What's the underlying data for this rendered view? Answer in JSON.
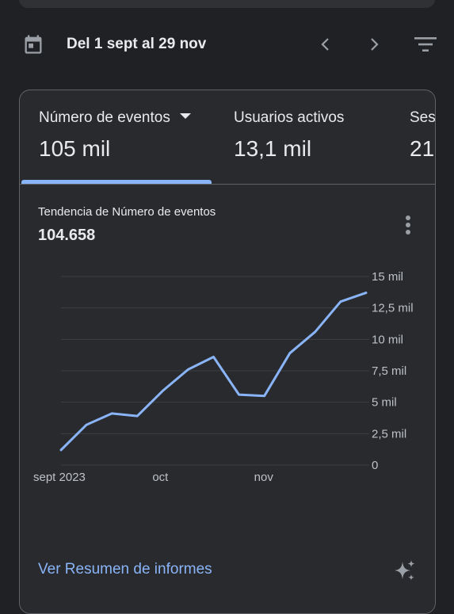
{
  "header": {
    "date_range": "Del 1 sept al 29 nov",
    "icons": {
      "calendar": "calendar-icon",
      "prev": "chevron-left-icon",
      "next": "chevron-right-icon",
      "filter": "filter-icon"
    }
  },
  "card": {
    "tabs": [
      {
        "label": "Número de eventos",
        "value": "105 mil",
        "selected": true
      },
      {
        "label": "Usuarios activos",
        "value": "13,1 mil",
        "selected": false
      },
      {
        "label": "Ses",
        "value": "21,",
        "selected": false
      }
    ],
    "trend_title": "Tendencia de Número de eventos",
    "trend_value": "104.658",
    "report_link": "Ver Resumen de informes"
  },
  "colors": {
    "background": "#202124",
    "card": "#292a2d",
    "accent": "#8ab4f8",
    "text": "#e8eaed",
    "muted": "#9aa0a6"
  },
  "chart_data": {
    "type": "line",
    "title": "",
    "xlabel": "",
    "ylabel": "",
    "x_tick_labels": [
      "sept 2023",
      "oct",
      "nov"
    ],
    "x_tick_indices": [
      0,
      4,
      8
    ],
    "y_tick_labels": [
      "0",
      "2,5 mil",
      "5 mil",
      "7,5 mil",
      "10 mil",
      "12,5 mil",
      "15 mil"
    ],
    "y_ticks": [
      0,
      2500,
      5000,
      7500,
      10000,
      12500,
      15000
    ],
    "ylim": [
      0,
      15000
    ],
    "grid": true,
    "series": [
      {
        "color": "#8ab4f8",
        "values": [
          1200,
          3200,
          4100,
          3900,
          5900,
          7600,
          8600,
          5600,
          5500,
          8900,
          10600,
          13000,
          13700
        ]
      }
    ]
  }
}
